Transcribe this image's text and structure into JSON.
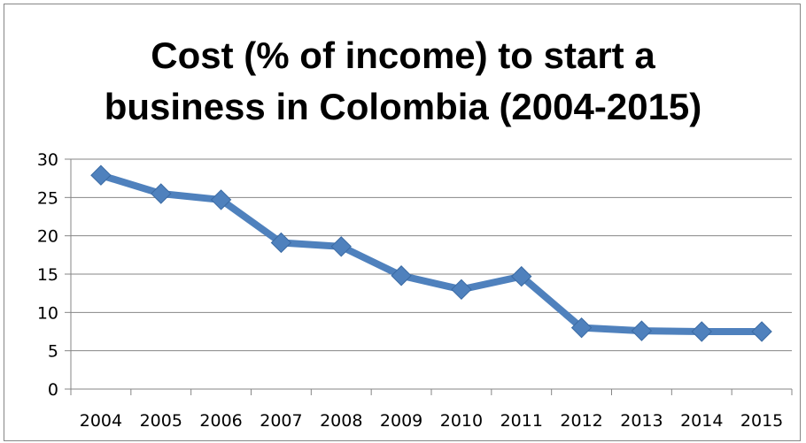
{
  "chart_data": {
    "type": "line",
    "title_lines": [
      "Cost (% of income) to start a",
      "business in Colombia (2004-2015)"
    ],
    "categories": [
      "2004",
      "2005",
      "2006",
      "2007",
      "2008",
      "2009",
      "2010",
      "2011",
      "2012",
      "2013",
      "2014",
      "2015"
    ],
    "series": [
      {
        "values": [
          27.9,
          25.5,
          24.7,
          19.1,
          18.6,
          14.8,
          13.0,
          14.7,
          8.0,
          7.6,
          7.5,
          7.5
        ],
        "color": "#4F81BD",
        "marker": "diamond"
      }
    ],
    "ylim": [
      0,
      30
    ],
    "yticks": [
      0,
      5,
      10,
      15,
      20,
      25,
      30
    ],
    "grid": true,
    "legend": "none"
  }
}
